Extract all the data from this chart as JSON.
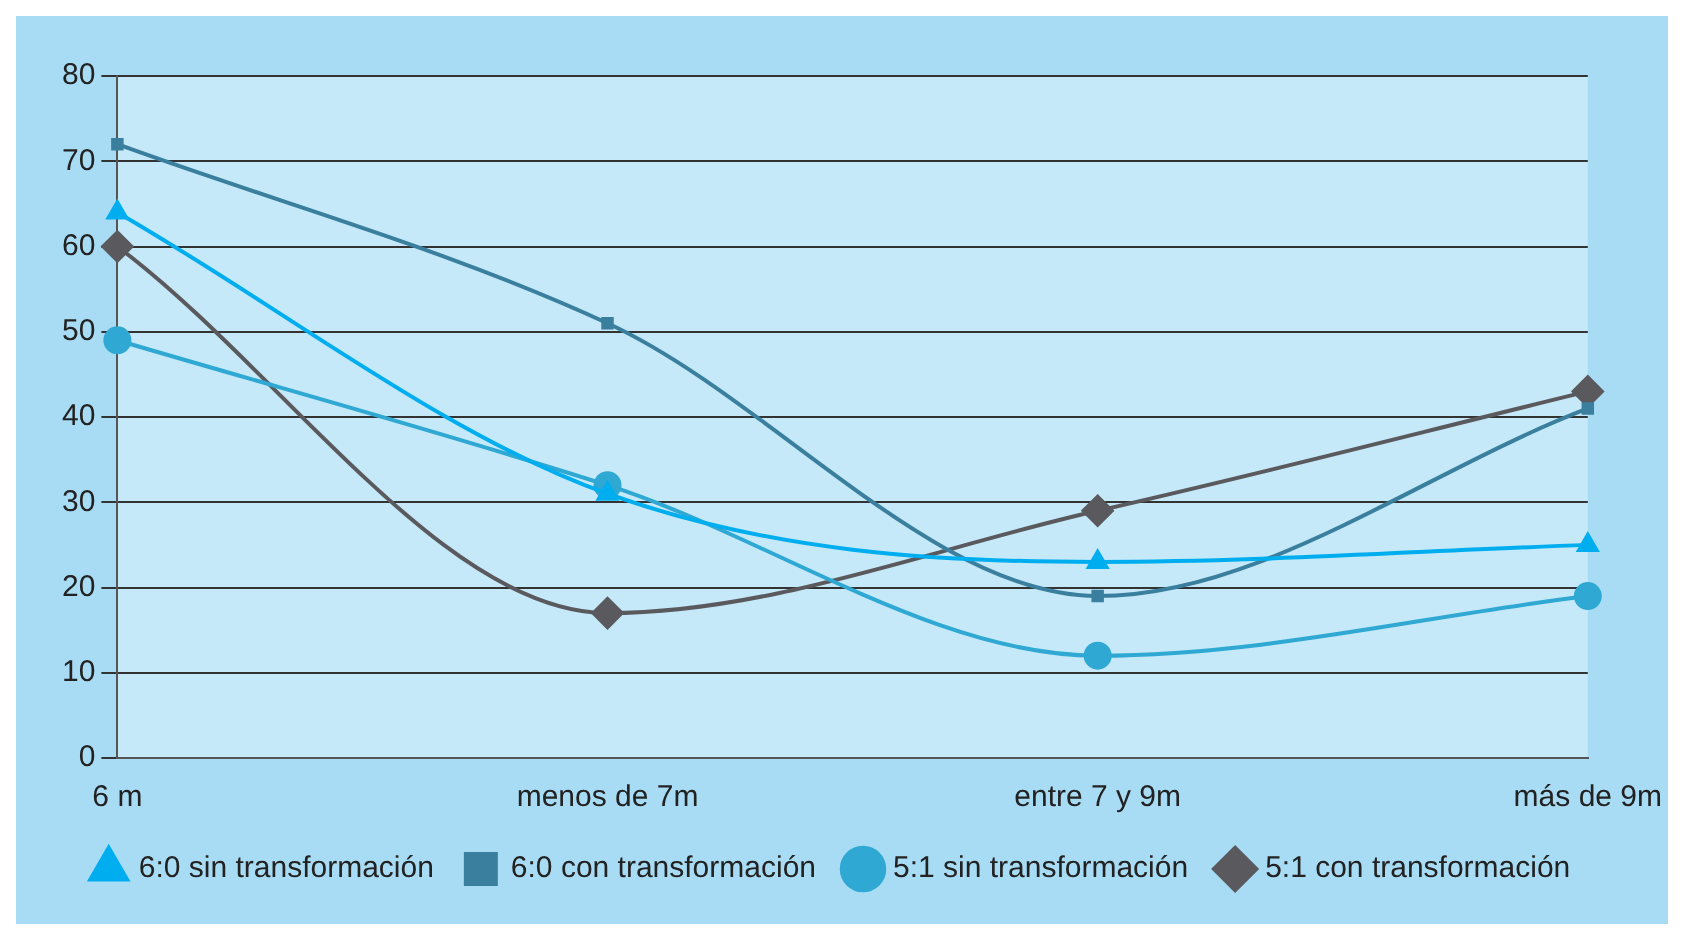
{
  "chart_data": {
    "type": "line",
    "categories": [
      "6 m",
      "menos de 7m",
      "entre 7 y 9m",
      "más de 9m"
    ],
    "series": [
      {
        "name": "6:0 sin transformación",
        "color": "#00aeef",
        "marker": "triangle",
        "values": [
          64,
          31,
          23,
          25
        ]
      },
      {
        "name": "6:0 con transformación",
        "color": "#3b7f9e",
        "marker": "square",
        "values": [
          72,
          51,
          19,
          41
        ]
      },
      {
        "name": "5:1 sin transformación",
        "color": "#2fa8d3",
        "marker": "circle",
        "values": [
          49,
          32,
          12,
          19
        ]
      },
      {
        "name": "5:1 con transformación",
        "color": "#5a5a5e",
        "marker": "diamond",
        "values": [
          60,
          17,
          29,
          43
        ]
      }
    ],
    "ylim": [
      0,
      80
    ],
    "yticks": [
      0,
      10,
      20,
      30,
      40,
      50,
      60,
      70,
      80
    ],
    "grid": "y",
    "legend": "bottom"
  }
}
